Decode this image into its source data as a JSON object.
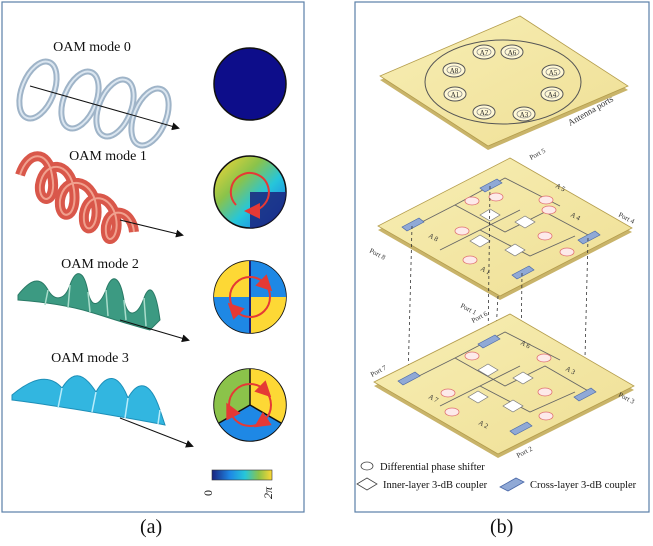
{
  "panel_a": {
    "modes": [
      {
        "label": "OAM mode 0",
        "color": "#9fb4c8"
      },
      {
        "label": "OAM mode 1",
        "color": "#d9574a"
      },
      {
        "label": "OAM mode 2",
        "color": "#3c9a82"
      },
      {
        "label": "OAM mode 3",
        "color": "#32b6e0"
      }
    ],
    "colorbar": {
      "min_label": "0",
      "max_label": "2π",
      "colors": [
        "#1a237e",
        "#1e88e5",
        "#26c6da",
        "#8bc34a",
        "#fdd835"
      ]
    },
    "caption": "(a)"
  },
  "panel_b": {
    "top_layer_title": "Antenna ports",
    "antennas": [
      "A1",
      "A2",
      "A3",
      "A4",
      "A5",
      "A6",
      "A7",
      "A8"
    ],
    "ports": [
      "Port 1",
      "Port 2",
      "Port 3",
      "Port 4",
      "Port 5",
      "Port 6",
      "Port 7",
      "Port 8"
    ],
    "middle_layer_antennas": [
      "A 1",
      "A 4",
      "A 5",
      "A 8"
    ],
    "middle_layer_shifters": [
      "ϕ1",
      "ϕ2",
      "ϕ3",
      "ϕ4",
      "ϕ5",
      "ϕ6",
      "ϕ7",
      "ϕ8"
    ],
    "bottom_layer_antennas": [
      "A 2",
      "A 3",
      "A 6",
      "A 7"
    ],
    "bottom_layer_shifters": [
      "ϕ1",
      "ϕ2",
      "ϕ3",
      "ϕ4",
      "ϕ5",
      "ϕ6"
    ],
    "legend": {
      "phase_shifter": "Differential phase shifter",
      "inner_coupler": "Inner-layer 3-dB coupler",
      "cross_coupler": "Cross-layer 3-dB coupler"
    },
    "caption": "(b)"
  }
}
